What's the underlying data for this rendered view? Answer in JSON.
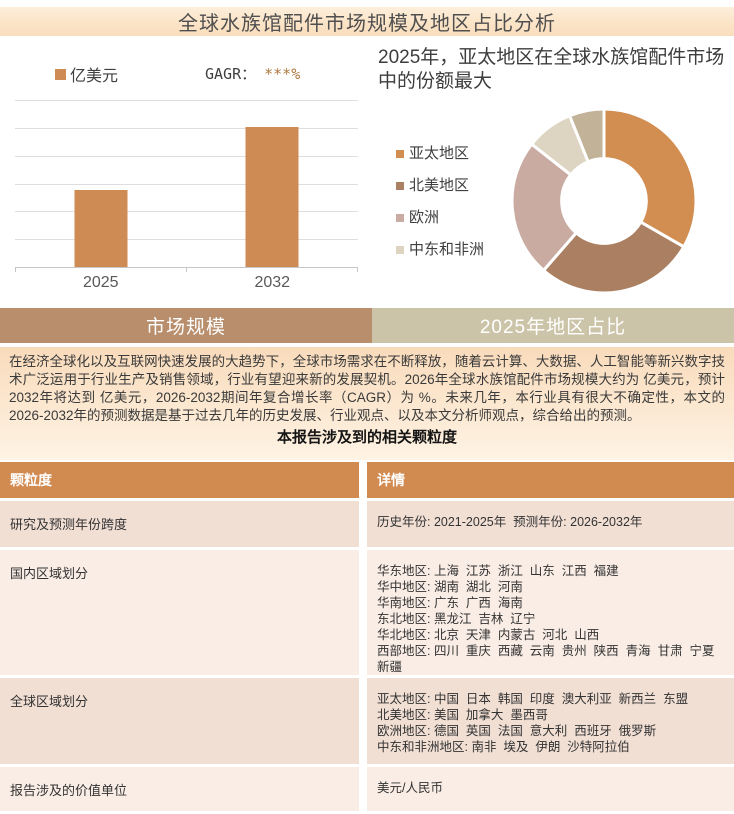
{
  "page": {
    "title": "全球水族馆配件市场规模及地区占比分析"
  },
  "tabs": [
    {
      "label": "市场规模",
      "color": "#B98E6C"
    },
    {
      "label": "2025年地区占比",
      "color": "#CCC4A8"
    }
  ],
  "chart_data": [
    {
      "type": "bar",
      "unit_label": "亿美元",
      "cagr_label": "GAGR：",
      "cagr_value": "***%",
      "categories": [
        "2025",
        "2032"
      ],
      "values_masked": true,
      "bar_height_pct_of_axis": [
        46,
        84
      ],
      "bar_color": "#CE8B53",
      "gridline_count": 7,
      "y_tick_labels": [],
      "legend_position": "top"
    },
    {
      "type": "donut",
      "title": "2025年，亚太地区在全球水族馆配件市场中的份额最大",
      "slices": [
        {
          "label": "亚太地区",
          "share_pct": 33.3,
          "color": "#D28D51"
        },
        {
          "label": "北美地区",
          "share_pct": 28.1,
          "color": "#AB8062"
        },
        {
          "label": "欧洲",
          "share_pct": 24.2,
          "color": "#C9ABA1"
        },
        {
          "label": "中东和非洲",
          "share_pct": 8.3,
          "color": "#DDD5C2"
        },
        {
          "label": "",
          "share_pct": 6.1,
          "color": "#C1B298"
        }
      ],
      "legend_position": "left",
      "hole_ratio": 0.46
    }
  ],
  "paragraph": {
    "text": "在经济全球化以及互联网快速发展的大趋势下，全球市场需求在不断释放，随着云计算、大数据、人工智能等新兴数字技术广泛运用于行业生产及销售领域，行业有望迎来新的发展契机。2026年全球水族馆配件市场规模大约为 亿美元，预计2032年将达到 亿美元，2026-2032期间年复合增长率（CAGR）为 %。未来几年，本行业具有很大不确定性，本文的2026-2032年的预测数据是基于过去几年的历史发展、行业观点、以及本文分析师观点，综合给出的预测。",
    "heading": "本报告涉及到的相关颗粒度"
  },
  "table": {
    "header_bg": "#D18A50",
    "row_colors": [
      "#F1DFD4",
      "#F9EDE5"
    ],
    "headers": [
      "颗粒度",
      "详情"
    ],
    "rows": [
      {
        "granularity": "研究及预测年份跨度",
        "details": [
          "历史年份: 2021-2025年  预测年份: 2026-2032年"
        ]
      },
      {
        "granularity": "国内区域划分",
        "details": [
          "华东地区: 上海  江苏  浙江  山东  江西  福建",
          "华中地区: 湖南  湖北  河南",
          "华南地区: 广东  广西  海南",
          "东北地区: 黑龙江  吉林  辽宁",
          "华北地区: 北京  天津  内蒙古  河北  山西",
          "西部地区: 四川  重庆  西藏  云南  贵州  陕西  青海  甘肃  宁夏  新疆"
        ]
      },
      {
        "granularity": "全球区域划分",
        "details": [
          "亚太地区: 中国  日本  韩国  印度  澳大利亚  新西兰  东盟",
          "北美地区: 美国  加拿大  墨西哥",
          "欧洲地区: 德国  英国  法国  意大利  西班牙  俄罗斯",
          "中东和非洲地区: 南非  埃及  伊朗  沙特阿拉伯"
        ]
      },
      {
        "granularity": "报告涉及的价值单位",
        "details": [
          "美元/人民币"
        ]
      }
    ]
  }
}
